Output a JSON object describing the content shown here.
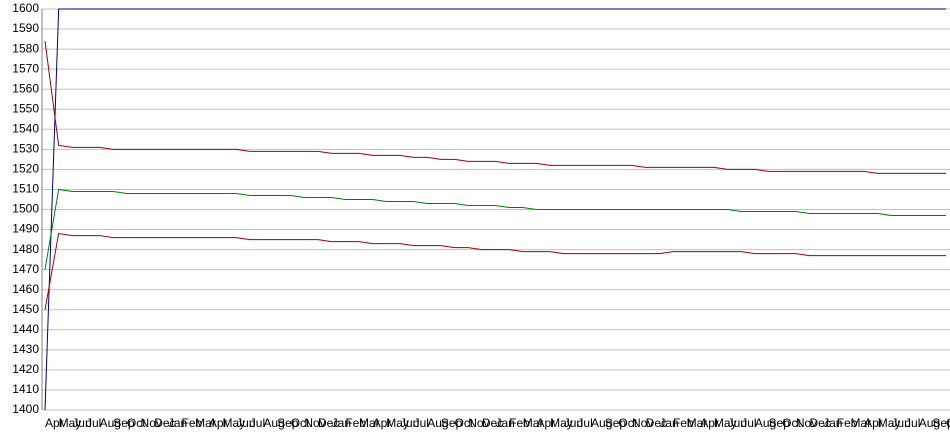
{
  "chart_data": {
    "type": "line",
    "categories": [
      "Apr",
      "May",
      "Jun",
      "Jul",
      "Aug",
      "Sep",
      "Oct",
      "Nov",
      "Dec",
      "Jan",
      "Feb",
      "Mar",
      "Apr",
      "May",
      "Jun",
      "Jul",
      "Aug",
      "Sep",
      "Oct",
      "Nov",
      "Dec",
      "Jan",
      "Feb",
      "Mar",
      "Apr",
      "May",
      "Jun",
      "Jul",
      "Aug",
      "Sep",
      "Oct",
      "Nov",
      "Dec",
      "Jan",
      "Feb",
      "Mar",
      "Apr",
      "May",
      "Jun",
      "Jul",
      "Aug",
      "Sep",
      "Oct",
      "Nov",
      "Dec",
      "Jan",
      "Feb",
      "Mar",
      "Apr",
      "May",
      "Jun",
      "Jul",
      "Aug",
      "Sep",
      "Oct",
      "Nov",
      "Dec",
      "Jan",
      "Feb",
      "Mar",
      "Apr",
      "May",
      "Jun",
      "Jul",
      "Aug",
      "Sep",
      "Oct"
    ],
    "series": [
      {
        "color": "#000080",
        "values": [
          1400,
          1600,
          1600,
          1600,
          1600,
          1600,
          1600,
          1600,
          1600,
          1600,
          1600,
          1600,
          1600,
          1600,
          1600,
          1600,
          1600,
          1600,
          1600,
          1600,
          1600,
          1600,
          1600,
          1600,
          1600,
          1600,
          1600,
          1600,
          1600,
          1600,
          1600,
          1600,
          1600,
          1600,
          1600,
          1600,
          1600,
          1600,
          1600,
          1600,
          1600,
          1600,
          1600,
          1600,
          1600,
          1600,
          1600,
          1600,
          1600,
          1600,
          1600,
          1600,
          1600,
          1600,
          1600,
          1600,
          1600,
          1600,
          1600,
          1600,
          1600,
          1600,
          1600,
          1600,
          1600,
          1600,
          1600
        ]
      },
      {
        "color": "#a00000",
        "values": [
          1584,
          1532,
          1531,
          1531,
          1531,
          1530,
          1530,
          1530,
          1530,
          1530,
          1530,
          1530,
          1530,
          1530,
          1530,
          1529,
          1529,
          1529,
          1529,
          1529,
          1529,
          1528,
          1528,
          1528,
          1527,
          1527,
          1527,
          1526,
          1526,
          1525,
          1525,
          1524,
          1524,
          1524,
          1523,
          1523,
          1523,
          1522,
          1522,
          1522,
          1522,
          1522,
          1522,
          1522,
          1521,
          1521,
          1521,
          1521,
          1521,
          1521,
          1520,
          1520,
          1520,
          1519,
          1519,
          1519,
          1519,
          1519,
          1519,
          1519,
          1519,
          1518,
          1518,
          1518,
          1518,
          1518,
          1518
        ]
      },
      {
        "color": "#008000",
        "values": [
          1470,
          1510,
          1509,
          1509,
          1509,
          1509,
          1508,
          1508,
          1508,
          1508,
          1508,
          1508,
          1508,
          1508,
          1508,
          1507,
          1507,
          1507,
          1507,
          1506,
          1506,
          1506,
          1505,
          1505,
          1505,
          1504,
          1504,
          1504,
          1503,
          1503,
          1503,
          1502,
          1502,
          1502,
          1501,
          1501,
          1500,
          1500,
          1500,
          1500,
          1500,
          1500,
          1500,
          1500,
          1500,
          1500,
          1500,
          1500,
          1500,
          1500,
          1500,
          1499,
          1499,
          1499,
          1499,
          1499,
          1498,
          1498,
          1498,
          1498,
          1498,
          1498,
          1497,
          1497,
          1497,
          1497,
          1497
        ]
      },
      {
        "color": "#a00000",
        "values": [
          1450,
          1488,
          1487,
          1487,
          1487,
          1486,
          1486,
          1486,
          1486,
          1486,
          1486,
          1486,
          1486,
          1486,
          1486,
          1485,
          1485,
          1485,
          1485,
          1485,
          1485,
          1484,
          1484,
          1484,
          1483,
          1483,
          1483,
          1482,
          1482,
          1482,
          1481,
          1481,
          1480,
          1480,
          1480,
          1479,
          1479,
          1479,
          1478,
          1478,
          1478,
          1478,
          1478,
          1478,
          1478,
          1478,
          1479,
          1479,
          1479,
          1479,
          1479,
          1479,
          1478,
          1478,
          1478,
          1478,
          1477,
          1477,
          1477,
          1477,
          1477,
          1477,
          1477,
          1477,
          1477,
          1477,
          1477
        ]
      }
    ],
    "ylim": [
      1400,
      1600
    ],
    "yticks": [
      1400,
      1410,
      1420,
      1430,
      1440,
      1450,
      1460,
      1470,
      1480,
      1490,
      1500,
      1510,
      1520,
      1530,
      1540,
      1550,
      1560,
      1570,
      1580,
      1590,
      1600
    ],
    "grid": true
  }
}
